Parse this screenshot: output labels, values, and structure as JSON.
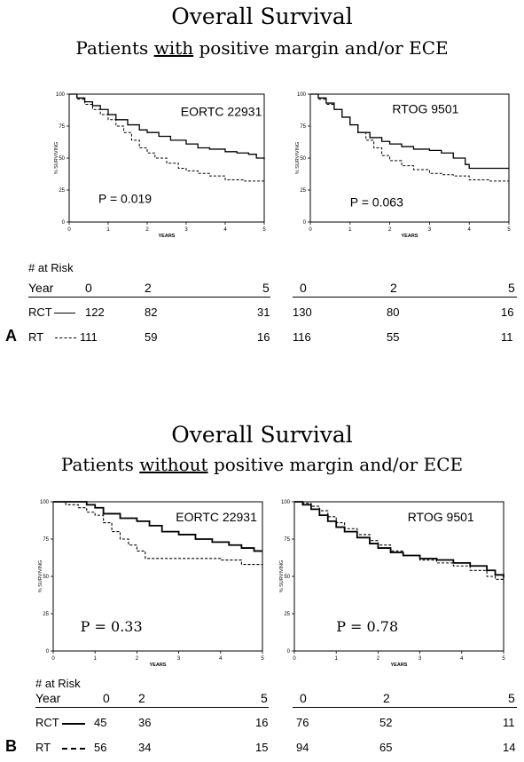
{
  "panels": [
    {
      "letter": "A",
      "title": "Overall Survival",
      "subtitle_pre": "Patients ",
      "subtitle_underlined": "with",
      "subtitle_post": " positive margin and/or ECE",
      "risk": {
        "header": "# at Risk",
        "year_label": "Year",
        "left_years": [
          "0",
          "2",
          "5"
        ],
        "right_years": [
          "0",
          "2",
          "5"
        ],
        "rows": [
          {
            "label": "RCT",
            "style": "solid",
            "left": [
              "122",
              "82",
              "31"
            ],
            "right": [
              "130",
              "80",
              "16"
            ]
          },
          {
            "label": "RT",
            "style": "dashed",
            "left": [
              "111",
              "59",
              "16"
            ],
            "right": [
              "116",
              "55",
              "11"
            ]
          }
        ]
      }
    },
    {
      "letter": "B",
      "title": "Overall Survival",
      "subtitle_pre": "Patients ",
      "subtitle_underlined": "without",
      "subtitle_post": " positive margin and/or ECE",
      "risk": {
        "header": "# at Risk",
        "year_label": "Year",
        "left_years": [
          "0",
          "2",
          "5"
        ],
        "right_years": [
          "0",
          "2",
          "5"
        ],
        "rows": [
          {
            "label": "RCT",
            "style": "solid",
            "left": [
              "45",
              "36",
              "16"
            ],
            "right": [
              "76",
              "52",
              "11"
            ]
          },
          {
            "label": "RT",
            "style": "dashed",
            "left": [
              "56",
              "34",
              "15"
            ],
            "right": [
              "94",
              "65",
              "14"
            ]
          }
        ]
      }
    }
  ],
  "chart_data": [
    {
      "type": "line",
      "step": true,
      "title": "EORTC 22931",
      "annotation": "P = 0.019",
      "xlabel": "YEARS",
      "ylabel": "% SURVIVING",
      "xlim": [
        0,
        5
      ],
      "ylim": [
        0,
        100
      ],
      "xticks": [
        0,
        1,
        2,
        3,
        4,
        5
      ],
      "yticks": [
        0,
        25,
        50,
        75,
        100
      ],
      "series": [
        {
          "name": "RCT",
          "style": "solid",
          "x": [
            0,
            0.2,
            0.4,
            0.6,
            0.8,
            1.0,
            1.2,
            1.5,
            1.8,
            2.0,
            2.3,
            2.6,
            3.0,
            3.3,
            3.6,
            4.0,
            4.3,
            4.6,
            4.8,
            5.0
          ],
          "y": [
            100,
            97,
            94,
            91,
            88,
            84,
            80,
            76,
            72,
            70,
            67,
            64,
            61,
            58,
            57,
            55,
            54,
            53,
            50,
            49
          ]
        },
        {
          "name": "RT",
          "style": "dashed",
          "x": [
            0,
            0.2,
            0.4,
            0.6,
            0.8,
            1.0,
            1.2,
            1.4,
            1.6,
            1.8,
            2.0,
            2.2,
            2.5,
            2.8,
            3.0,
            3.3,
            3.6,
            4.0,
            4.5,
            5.0
          ],
          "y": [
            100,
            96,
            92,
            88,
            84,
            80,
            75,
            70,
            64,
            58,
            54,
            50,
            46,
            42,
            40,
            38,
            36,
            33,
            32,
            32
          ]
        }
      ]
    },
    {
      "type": "line",
      "step": true,
      "title": "RTOG 9501",
      "annotation": "P = 0.063",
      "xlabel": "YEARS",
      "ylabel": "% SURVIVING",
      "xlim": [
        0,
        5
      ],
      "ylim": [
        0,
        100
      ],
      "xticks": [
        0,
        1,
        2,
        3,
        4,
        5
      ],
      "yticks": [
        0,
        25,
        50,
        75,
        100
      ],
      "series": [
        {
          "name": "RCT",
          "style": "solid",
          "x": [
            0,
            0.2,
            0.4,
            0.6,
            0.8,
            1.0,
            1.2,
            1.5,
            1.8,
            2.0,
            2.3,
            2.6,
            3.0,
            3.3,
            3.6,
            3.9,
            4.0,
            5.0
          ],
          "y": [
            100,
            97,
            93,
            88,
            82,
            76,
            70,
            66,
            63,
            61,
            59,
            57,
            56,
            54,
            50,
            45,
            42,
            42
          ]
        },
        {
          "name": "RT",
          "style": "dashed",
          "x": [
            0,
            0.2,
            0.4,
            0.6,
            0.8,
            1.0,
            1.2,
            1.4,
            1.6,
            1.8,
            2.0,
            2.3,
            2.6,
            3.0,
            3.3,
            3.6,
            4.0,
            4.5,
            5.0
          ],
          "y": [
            100,
            96,
            92,
            88,
            82,
            76,
            70,
            64,
            58,
            52,
            48,
            44,
            41,
            38,
            37,
            36,
            33,
            32,
            31
          ]
        }
      ]
    },
    {
      "type": "line",
      "step": true,
      "title": "EORTC 22931",
      "annotation": "P = 0.33",
      "xlabel": "YEARS",
      "ylabel": "% SURVIVING",
      "xlim": [
        0,
        5
      ],
      "ylim": [
        0,
        100
      ],
      "xticks": [
        0,
        1,
        2,
        3,
        4,
        5
      ],
      "yticks": [
        0,
        25,
        50,
        75,
        100
      ],
      "series": [
        {
          "name": "RCT",
          "style": "solid",
          "x": [
            0,
            0.5,
            0.8,
            1.0,
            1.2,
            1.6,
            2.0,
            2.3,
            2.6,
            3.0,
            3.4,
            3.8,
            4.2,
            4.5,
            4.8,
            5.0
          ],
          "y": [
            100,
            100,
            98,
            96,
            92,
            89,
            87,
            84,
            80,
            78,
            75,
            73,
            71,
            69,
            67,
            67
          ]
        },
        {
          "name": "RT",
          "style": "dashed",
          "x": [
            0,
            0.3,
            0.6,
            0.8,
            1.0,
            1.2,
            1.4,
            1.6,
            1.8,
            2.0,
            2.2,
            2.5,
            3.0,
            3.5,
            4.0,
            4.5,
            5.0
          ],
          "y": [
            100,
            98,
            96,
            93,
            91,
            86,
            80,
            75,
            71,
            67,
            62,
            62,
            62,
            62,
            61,
            58,
            57
          ]
        }
      ]
    },
    {
      "type": "line",
      "step": true,
      "title": "RTOG 9501",
      "annotation": "P = 0.78",
      "xlabel": "YEARS",
      "ylabel": "% SURVIVING",
      "xlim": [
        0,
        5
      ],
      "ylim": [
        0,
        100
      ],
      "xticks": [
        0,
        1,
        2,
        3,
        4,
        5
      ],
      "yticks": [
        0,
        25,
        50,
        75,
        100
      ],
      "series": [
        {
          "name": "RCT",
          "style": "solid",
          "x": [
            0,
            0.2,
            0.4,
            0.6,
            0.8,
            1.0,
            1.2,
            1.5,
            1.8,
            2.0,
            2.3,
            2.6,
            3.0,
            3.4,
            3.8,
            4.2,
            4.6,
            4.8,
            5.0
          ],
          "y": [
            100,
            98,
            95,
            91,
            87,
            83,
            80,
            76,
            72,
            69,
            66,
            64,
            62,
            61,
            59,
            57,
            54,
            51,
            49
          ]
        },
        {
          "name": "RT",
          "style": "dashed",
          "x": [
            0,
            0.2,
            0.4,
            0.6,
            0.8,
            1.0,
            1.2,
            1.5,
            1.8,
            2.0,
            2.3,
            2.6,
            3.0,
            3.4,
            3.8,
            4.2,
            4.6,
            4.8,
            5.0
          ],
          "y": [
            100,
            99,
            97,
            94,
            90,
            86,
            82,
            78,
            74,
            71,
            67,
            64,
            61,
            59,
            57,
            54,
            50,
            48,
            46
          ]
        }
      ]
    }
  ]
}
